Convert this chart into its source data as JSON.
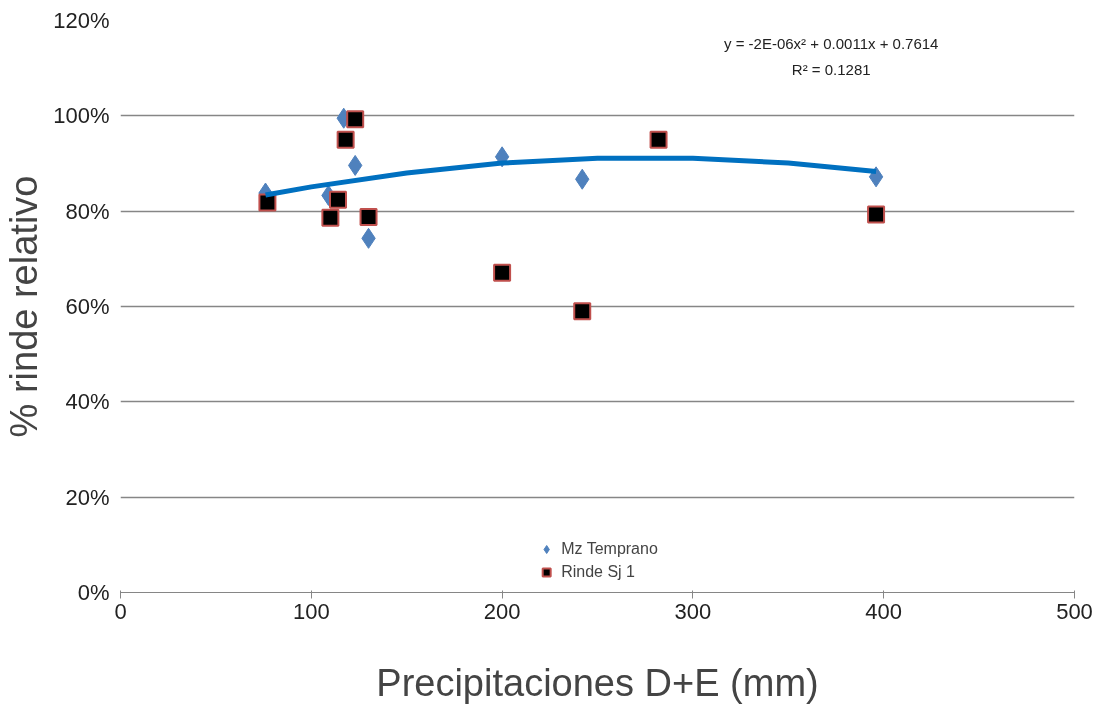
{
  "chart_data": {
    "type": "scatter",
    "xlabel": "Precipitaciones D+E (mm)",
    "ylabel": "% rinde relativo",
    "xlim": [
      0,
      500
    ],
    "xticks": [
      0,
      100,
      200,
      300,
      400,
      500
    ],
    "ylim": [
      0,
      120
    ],
    "yticks": [
      {
        "value": 0,
        "label": "0%"
      },
      {
        "value": 20,
        "label": "20%"
      },
      {
        "value": 40,
        "label": "40%"
      },
      {
        "value": 60,
        "label": "60%"
      },
      {
        "value": 80,
        "label": "80%"
      },
      {
        "value": 100,
        "label": "100%"
      },
      {
        "value": 120,
        "label": "120%"
      }
    ],
    "grid": "y",
    "legend": "bottom",
    "annotations": [
      "y = -2E-06x² + 0.0011x + 0.7614",
      "R² = 0.1281"
    ],
    "series": [
      {
        "name": "Mz Temprano",
        "color": "#4f81bd",
        "marker": "diamond",
        "x": [
          76,
          117,
          123,
          109,
          130,
          200,
          242,
          396
        ],
        "values": [
          83.8,
          99.5,
          89.6,
          83.3,
          74.3,
          91.4,
          86.7,
          87.2
        ]
      },
      {
        "name": "Rinde Sj 1",
        "color": "#000000",
        "marker": "square",
        "x": [
          77,
          123,
          118,
          114,
          110,
          130,
          200,
          242,
          282,
          396
        ],
        "values": [
          81.8,
          99.3,
          95,
          82.4,
          78.6,
          78.8,
          67.1,
          59,
          95,
          79.3
        ]
      },
      {
        "type": "line",
        "color": "#0070c0",
        "marker": "none",
        "line_style": "solid",
        "x": [
          76,
          100,
          150,
          200,
          250,
          300,
          350,
          396
        ],
        "values": [
          83.4,
          85.1,
          88.0,
          90.1,
          91.1,
          91.1,
          90.1,
          88.3
        ]
      }
    ]
  }
}
